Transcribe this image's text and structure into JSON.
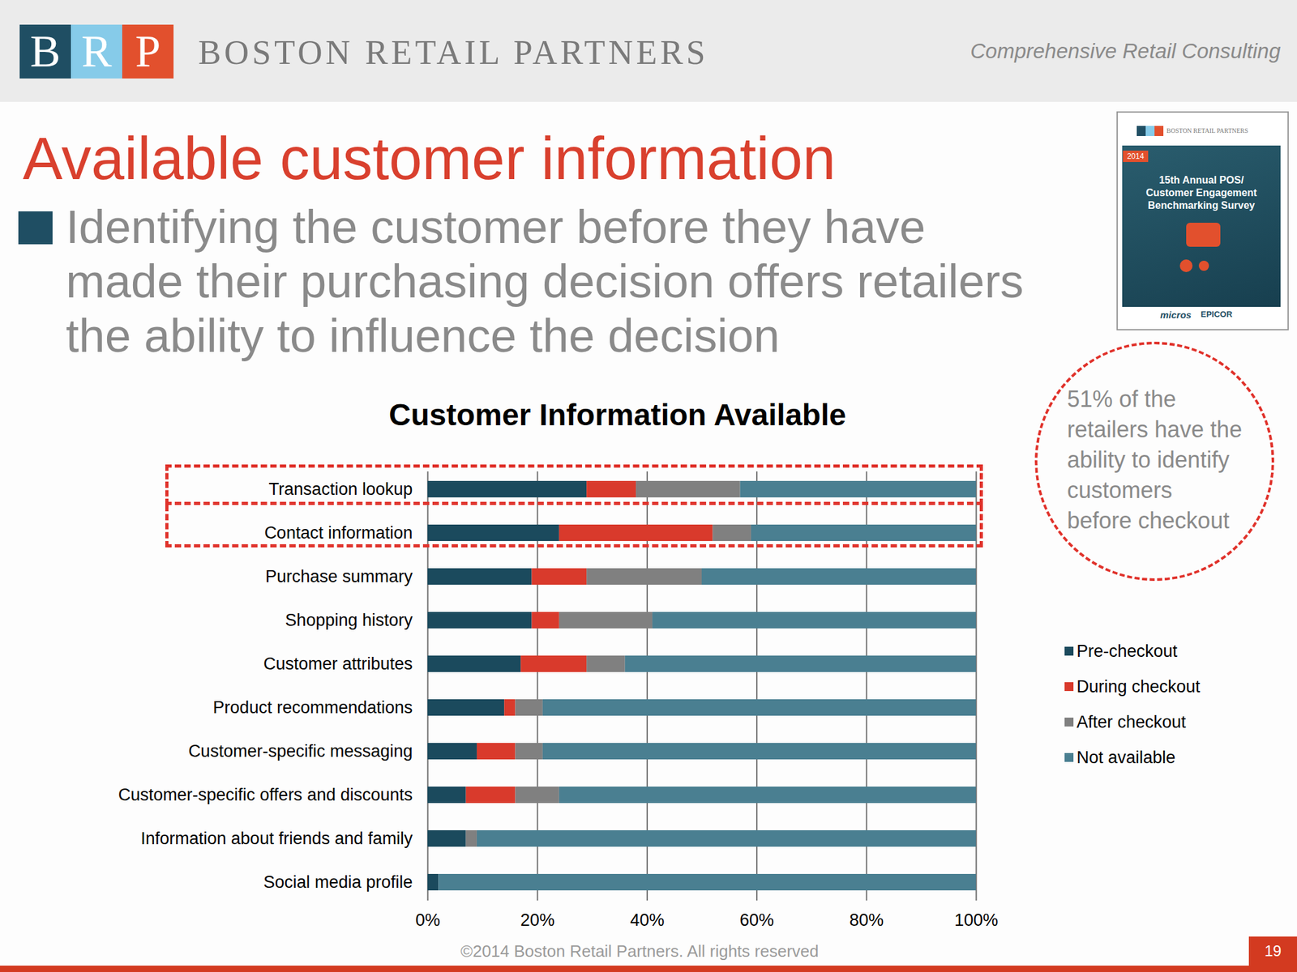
{
  "header": {
    "logo_letters": [
      "B",
      "R",
      "P"
    ],
    "company": "BOSTON RETAIL PARTNERS",
    "tagline": "Comprehensive Retail Consulting"
  },
  "title": "Available customer information",
  "bullet": [
    "Identifying the customer before they have",
    "made their purchasing decision offers retailers",
    "the ability to influence the decision"
  ],
  "cover": {
    "company": "BOSTON RETAIL PARTNERS",
    "year": "2014",
    "title": [
      "15th Annual POS/",
      "Customer Engagement",
      "Benchmarking Survey"
    ],
    "sponsors": [
      "micros",
      "EPICOR"
    ]
  },
  "callout": [
    "51% of the",
    "retailers have the",
    "ability to identify",
    "customers",
    "before checkout"
  ],
  "chart_data": {
    "type": "bar",
    "title": "Customer Information Available",
    "orientation": "horizontal",
    "stacked": true,
    "categories": [
      "Transaction lookup",
      "Contact information",
      "Purchase summary",
      "Shopping history",
      "Customer attributes",
      "Product recommendations",
      "Customer-specific messaging",
      "Customer-specific offers and discounts",
      "Information about friends and family",
      "Social media profile"
    ],
    "series": [
      {
        "name": "Pre-checkout",
        "color": "#1b4a5d",
        "values": [
          29,
          24,
          19,
          19,
          17,
          14,
          9,
          7,
          7,
          2
        ]
      },
      {
        "name": "During checkout",
        "color": "#d93a2c",
        "values": [
          9,
          28,
          10,
          5,
          12,
          2,
          7,
          9,
          0,
          0
        ]
      },
      {
        "name": "After checkout",
        "color": "#808080",
        "values": [
          19,
          7,
          21,
          17,
          7,
          5,
          5,
          8,
          2,
          0
        ]
      },
      {
        "name": "Not available",
        "color": "#4a7f91",
        "values": [
          43,
          41,
          50,
          59,
          64,
          79,
          79,
          76,
          91,
          98
        ]
      }
    ],
    "xlim": [
      0,
      100
    ],
    "xticks": [
      {
        "value": 0,
        "label": "0%"
      },
      {
        "value": 20,
        "label": "20%"
      },
      {
        "value": 40,
        "label": "40%"
      },
      {
        "value": 60,
        "label": "60%"
      },
      {
        "value": 80,
        "label": "80%"
      },
      {
        "value": 100,
        "label": "100%"
      }
    ],
    "grid": true,
    "legend": "right"
  },
  "footer": "©2014 Boston Retail Partners. All rights reserved",
  "page_number": "19"
}
